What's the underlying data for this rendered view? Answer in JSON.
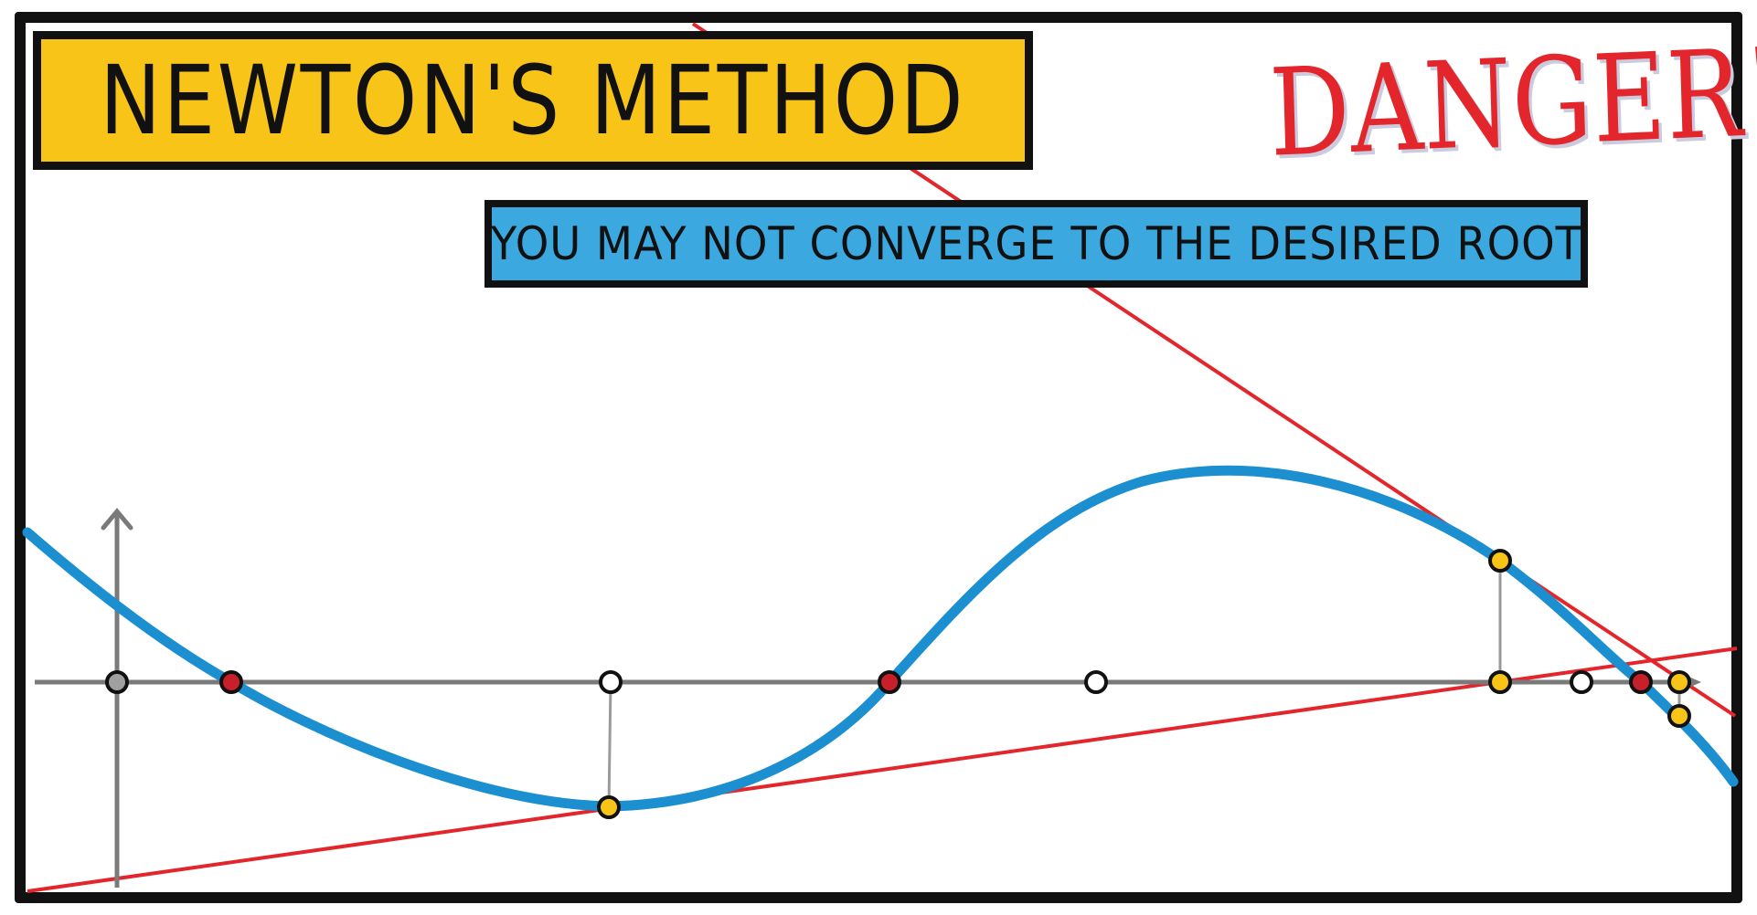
{
  "title": "NEWTON'S METHOD",
  "subtitle": "YOU MAY NOT CONVERGE TO THE DESIRED ROOT",
  "warning": "DANGER!",
  "colors": {
    "frame": "#111111",
    "title_bg": "#f7c417",
    "subtitle_bg": "#3ba9e0",
    "warning": "#e3262b",
    "curve": "#1b8fd0",
    "tangent": "#e3262b",
    "axis": "#7a7a7a",
    "root_point": "#c8202b",
    "iterate_point": "#f7c417",
    "start_point": "#ffffff",
    "origin_point": "#a0a0a0"
  },
  "icons": {
    "y_axis_arrow": "arrow-up-icon",
    "x_axis_arrow": "arrow-right-icon"
  }
}
